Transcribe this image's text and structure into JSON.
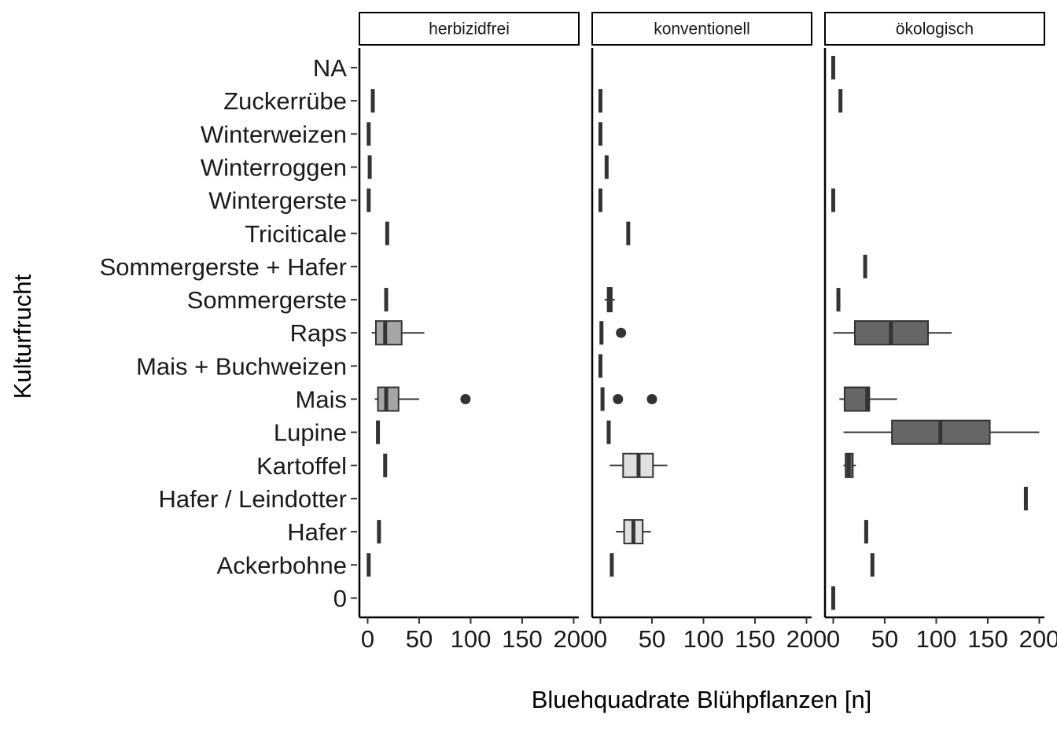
{
  "chart_data": {
    "type": "boxplot",
    "xlabel": "Bluehquadrate Blühpflanzen [n]",
    "ylabel": "Kulturfrucht",
    "xlim": [
      -8,
      205
    ],
    "xticks": [
      0,
      50,
      100,
      150,
      200
    ],
    "xtick_labels": [
      "0",
      "50",
      "100",
      "150",
      "200"
    ],
    "grid": false,
    "categories": [
      "NA",
      "Zuckerrübe",
      "Winterweizen",
      "Winterroggen",
      "Wintergerste",
      "Triciticale",
      "Sommergerste + Hafer",
      "Sommergerste",
      "Raps",
      "Mais + Buchweizen",
      "Mais",
      "Lupine",
      "Kartoffel",
      "Hafer / Leindotter",
      "Hafer",
      "Ackerbohne",
      "0"
    ],
    "panels": [
      {
        "name": "herbizidfrei",
        "fill": "#a6a6a6",
        "boxes": [
          {
            "category": "Zuckerrübe",
            "min": 5,
            "q1": 5,
            "median": 5,
            "q3": 5,
            "max": 5,
            "outliers": []
          },
          {
            "category": "Winterweizen",
            "min": 1,
            "q1": 1,
            "median": 1,
            "q3": 1,
            "max": 1,
            "outliers": []
          },
          {
            "category": "Winterroggen",
            "min": 2,
            "q1": 2,
            "median": 2,
            "q3": 2,
            "max": 2,
            "outliers": []
          },
          {
            "category": "Wintergerste",
            "min": 1,
            "q1": 1,
            "median": 1,
            "q3": 1,
            "max": 1,
            "outliers": []
          },
          {
            "category": "Triciticale",
            "min": 19,
            "q1": 19,
            "median": 19,
            "q3": 19,
            "max": 19,
            "outliers": []
          },
          {
            "category": "Sommergerste",
            "min": 18,
            "q1": 18,
            "median": 18,
            "q3": 18,
            "max": 18,
            "outliers": []
          },
          {
            "category": "Raps",
            "min": 4,
            "q1": 8,
            "median": 17,
            "q3": 33,
            "max": 55,
            "outliers": []
          },
          {
            "category": "Mais",
            "min": 7,
            "q1": 10,
            "median": 18,
            "q3": 30,
            "max": 50,
            "outliers": [
              95
            ]
          },
          {
            "category": "Lupine",
            "min": 10,
            "q1": 10,
            "median": 10,
            "q3": 10,
            "max": 10,
            "outliers": []
          },
          {
            "category": "Kartoffel",
            "min": 17,
            "q1": 17,
            "median": 17,
            "q3": 17,
            "max": 17,
            "outliers": []
          },
          {
            "category": "Hafer",
            "min": 11,
            "q1": 11,
            "median": 11,
            "q3": 11,
            "max": 11,
            "outliers": []
          },
          {
            "category": "Ackerbohne",
            "min": 1,
            "q1": 1,
            "median": 1,
            "q3": 1,
            "max": 1,
            "outliers": []
          }
        ]
      },
      {
        "name": "konventionell",
        "fill": "#e0e0e0",
        "boxes": [
          {
            "category": "Zuckerrübe",
            "min": 0,
            "q1": 0,
            "median": 0,
            "q3": 0,
            "max": 0,
            "outliers": []
          },
          {
            "category": "Winterweizen",
            "min": 0,
            "q1": 0,
            "median": 0,
            "q3": 0,
            "max": 0,
            "outliers": []
          },
          {
            "category": "Winterroggen",
            "min": 6,
            "q1": 6,
            "median": 6,
            "q3": 6,
            "max": 6,
            "outliers": []
          },
          {
            "category": "Wintergerste",
            "min": 0,
            "q1": 0,
            "median": 0,
            "q3": 0,
            "max": 0,
            "outliers": []
          },
          {
            "category": "Triciticale",
            "min": 27,
            "q1": 27,
            "median": 27,
            "q3": 27,
            "max": 27,
            "outliers": []
          },
          {
            "category": "Sommergerste",
            "min": 4,
            "q1": 7,
            "median": 9,
            "q3": 11,
            "max": 14,
            "outliers": []
          },
          {
            "category": "Raps",
            "min": 1,
            "q1": 1,
            "median": 1,
            "q3": 1,
            "max": 1,
            "outliers": [
              20
            ]
          },
          {
            "category": "Mais + Buchweizen",
            "min": 0,
            "q1": 0,
            "median": 0,
            "q3": 0,
            "max": 0,
            "outliers": []
          },
          {
            "category": "Mais",
            "min": 2,
            "q1": 2,
            "median": 2,
            "q3": 2,
            "max": 2,
            "outliers": [
              17,
              50
            ]
          },
          {
            "category": "Lupine",
            "min": 8,
            "q1": 8,
            "median": 8,
            "q3": 8,
            "max": 8,
            "outliers": []
          },
          {
            "category": "Kartoffel",
            "min": 9,
            "q1": 22,
            "median": 37,
            "q3": 51,
            "max": 65,
            "outliers": []
          },
          {
            "category": "Hafer",
            "min": 15,
            "q1": 23,
            "median": 32,
            "q3": 41,
            "max": 49,
            "outliers": []
          },
          {
            "category": "Ackerbohne",
            "min": 11,
            "q1": 11,
            "median": 11,
            "q3": 11,
            "max": 11,
            "outliers": []
          }
        ]
      },
      {
        "name": "ökologisch",
        "fill": "#666666",
        "boxes": [
          {
            "category": "NA",
            "min": 0,
            "q1": 0,
            "median": 0,
            "q3": 0,
            "max": 0,
            "outliers": []
          },
          {
            "category": "Zuckerrübe",
            "min": 7,
            "q1": 7,
            "median": 7,
            "q3": 7,
            "max": 7,
            "outliers": []
          },
          {
            "category": "Wintergerste",
            "min": 0,
            "q1": 0,
            "median": 0,
            "q3": 0,
            "max": 0,
            "outliers": []
          },
          {
            "category": "Sommergerste + Hafer",
            "min": 31,
            "q1": 31,
            "median": 31,
            "q3": 31,
            "max": 31,
            "outliers": []
          },
          {
            "category": "Sommergerste",
            "min": 5,
            "q1": 5,
            "median": 5,
            "q3": 5,
            "max": 5,
            "outliers": []
          },
          {
            "category": "Raps",
            "min": 0,
            "q1": 21,
            "median": 56,
            "q3": 92,
            "max": 115,
            "outliers": []
          },
          {
            "category": "Mais",
            "min": 6,
            "q1": 11,
            "median": 33,
            "q3": 35,
            "max": 62,
            "outliers": []
          },
          {
            "category": "Lupine",
            "min": 10,
            "q1": 57,
            "median": 104,
            "q3": 152,
            "max": 200,
            "outliers": []
          },
          {
            "category": "Kartoffel",
            "min": 10,
            "q1": 12,
            "median": 15,
            "q3": 19,
            "max": 22,
            "outliers": []
          },
          {
            "category": "Hafer / Leindotter",
            "min": 187,
            "q1": 187,
            "median": 187,
            "q3": 187,
            "max": 187,
            "outliers": []
          },
          {
            "category": "Hafer",
            "min": 32,
            "q1": 32,
            "median": 32,
            "q3": 32,
            "max": 32,
            "outliers": []
          },
          {
            "category": "Ackerbohne",
            "min": 38,
            "q1": 38,
            "median": 38,
            "q3": 38,
            "max": 38,
            "outliers": []
          },
          {
            "category": "0",
            "min": 0,
            "q1": 0,
            "median": 0,
            "q3": 0,
            "max": 0,
            "outliers": []
          }
        ]
      }
    ]
  }
}
